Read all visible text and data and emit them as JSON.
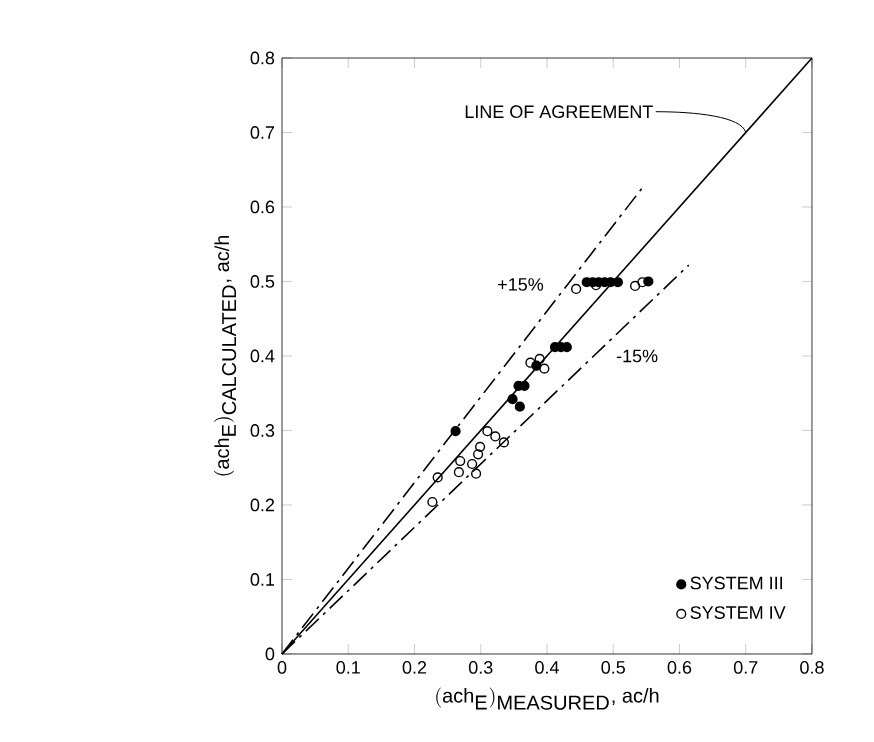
{
  "chart_data": {
    "type": "scatter",
    "xlabel": "(\\textrm{ach}_{\\textrm{E}})_{\\textrm{MEASURED}}\\textrm{, ac/h}",
    "ylabel": "(\\textrm{ach}_{\\textrm{E}})_{\\textrm{CALCULATED}}\\textrm{, ac/h}",
    "xlim": [
      0,
      0.8
    ],
    "ylim": [
      0,
      0.8
    ],
    "xticks": [
      0,
      0.1,
      0.2,
      0.3,
      0.4,
      0.5,
      0.6,
      0.7,
      0.8
    ],
    "yticks": [
      0,
      0.1,
      0.2,
      0.3,
      0.4,
      0.5,
      0.6,
      0.7,
      0.8
    ],
    "grid": false,
    "legend": "bottom right",
    "series": [
      {
        "type": "line",
        "color": "#000000",
        "line_style": "solid",
        "marker": "none",
        "x": [
          0,
          0.8
        ],
        "values": [
          0,
          0.8
        ]
      },
      {
        "type": "line",
        "color": "#000000",
        "line_style": "dashed",
        "marker": "none",
        "x": [
          0,
          0.545
        ],
        "values": [
          0,
          0.627
        ]
      },
      {
        "type": "line",
        "color": "#000000",
        "line_style": "dashed",
        "marker": "none",
        "x": [
          0,
          0.614
        ],
        "values": [
          0,
          0.522
        ]
      },
      {
        "name": "SYSTEM III",
        "marker": "circle",
        "color": "#000000",
        "x": [
          0.262,
          0.46,
          0.469,
          0.478,
          0.487,
          0.496,
          0.507,
          0.553,
          0.412,
          0.421,
          0.43,
          0.357,
          0.366,
          0.348,
          0.359,
          0.384
        ],
        "values": [
          0.299,
          0.499,
          0.499,
          0.499,
          0.499,
          0.499,
          0.499,
          0.5,
          0.412,
          0.412,
          0.412,
          0.36,
          0.36,
          0.342,
          0.332,
          0.387
        ]
      },
      {
        "name": "SYSTEM IV",
        "marker": "circle",
        "color": "#000000",
        "x": [
          0.444,
          0.474,
          0.533,
          0.544,
          0.375,
          0.389,
          0.396,
          0.31,
          0.322,
          0.335,
          0.299,
          0.296,
          0.287,
          0.269,
          0.267,
          0.293,
          0.235,
          0.227
        ],
        "values": [
          0.49,
          0.495,
          0.494,
          0.499,
          0.391,
          0.396,
          0.383,
          0.299,
          0.292,
          0.284,
          0.278,
          0.268,
          0.255,
          0.259,
          0.244,
          0.242,
          0.237,
          0.204
        ]
      }
    ],
    "annotations": [
      {
        "text": "LINE OF AGREEMENT",
        "x": 0.7,
        "y": 0.7
      },
      "+15%",
      "-15%"
    ]
  }
}
